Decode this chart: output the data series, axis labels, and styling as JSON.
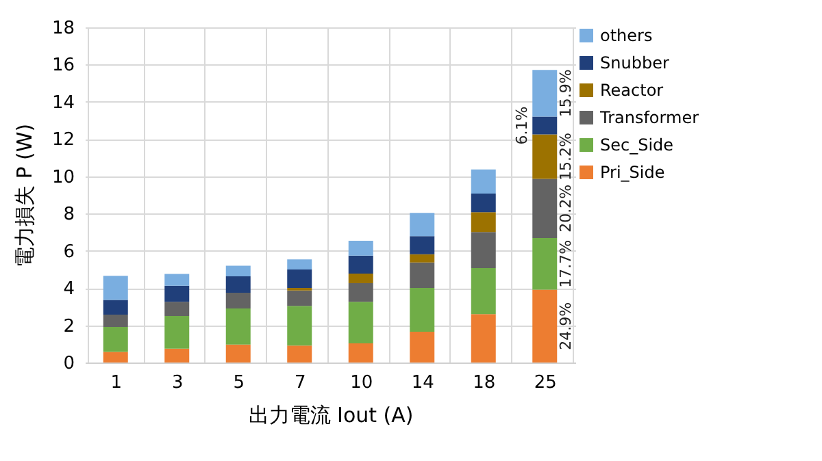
{
  "chart_data": {
    "type": "bar",
    "stacked": true,
    "xlabel": "出力電流 Iout (A)",
    "ylabel": "電力損失 P (W)",
    "categories": [
      "1",
      "3",
      "5",
      "7",
      "10",
      "14",
      "18",
      "25"
    ],
    "series": [
      {
        "name": "Pri_Side",
        "color": "#ed7d31",
        "values": [
          0.57,
          0.74,
          0.96,
          0.91,
          1.03,
          1.65,
          2.6,
          3.91
        ]
      },
      {
        "name": "Sec_Side",
        "color": "#70ad47",
        "values": [
          1.34,
          1.76,
          1.94,
          2.13,
          2.23,
          2.35,
          2.47,
          2.78
        ]
      },
      {
        "name": "Transformer",
        "color": "#636363",
        "values": [
          0.66,
          0.76,
          0.85,
          0.83,
          1.0,
          1.37,
          1.94,
          3.17
        ]
      },
      {
        "name": "Reactor",
        "color": "#9c7200",
        "values": [
          0,
          0,
          0,
          0.13,
          0.52,
          0.44,
          1.06,
          2.39
        ]
      },
      {
        "name": "Snubber",
        "color": "#203f7a",
        "values": [
          0.79,
          0.86,
          0.88,
          1.0,
          0.96,
          0.98,
          1.0,
          0.96
        ]
      },
      {
        "name": "others",
        "color": "#7aaee0",
        "values": [
          1.3,
          0.64,
          0.57,
          0.54,
          0.8,
          1.25,
          1.3,
          2.5
        ]
      }
    ],
    "ylim": [
      0,
      18
    ],
    "yticks": [
      0,
      2,
      4,
      6,
      8,
      10,
      12,
      14,
      16,
      18
    ],
    "grid": true,
    "legend": "right",
    "annotations": [
      "24.9%",
      "17.7%",
      "20.2%",
      "15.2%",
      "6.1%",
      "15.9%"
    ]
  }
}
